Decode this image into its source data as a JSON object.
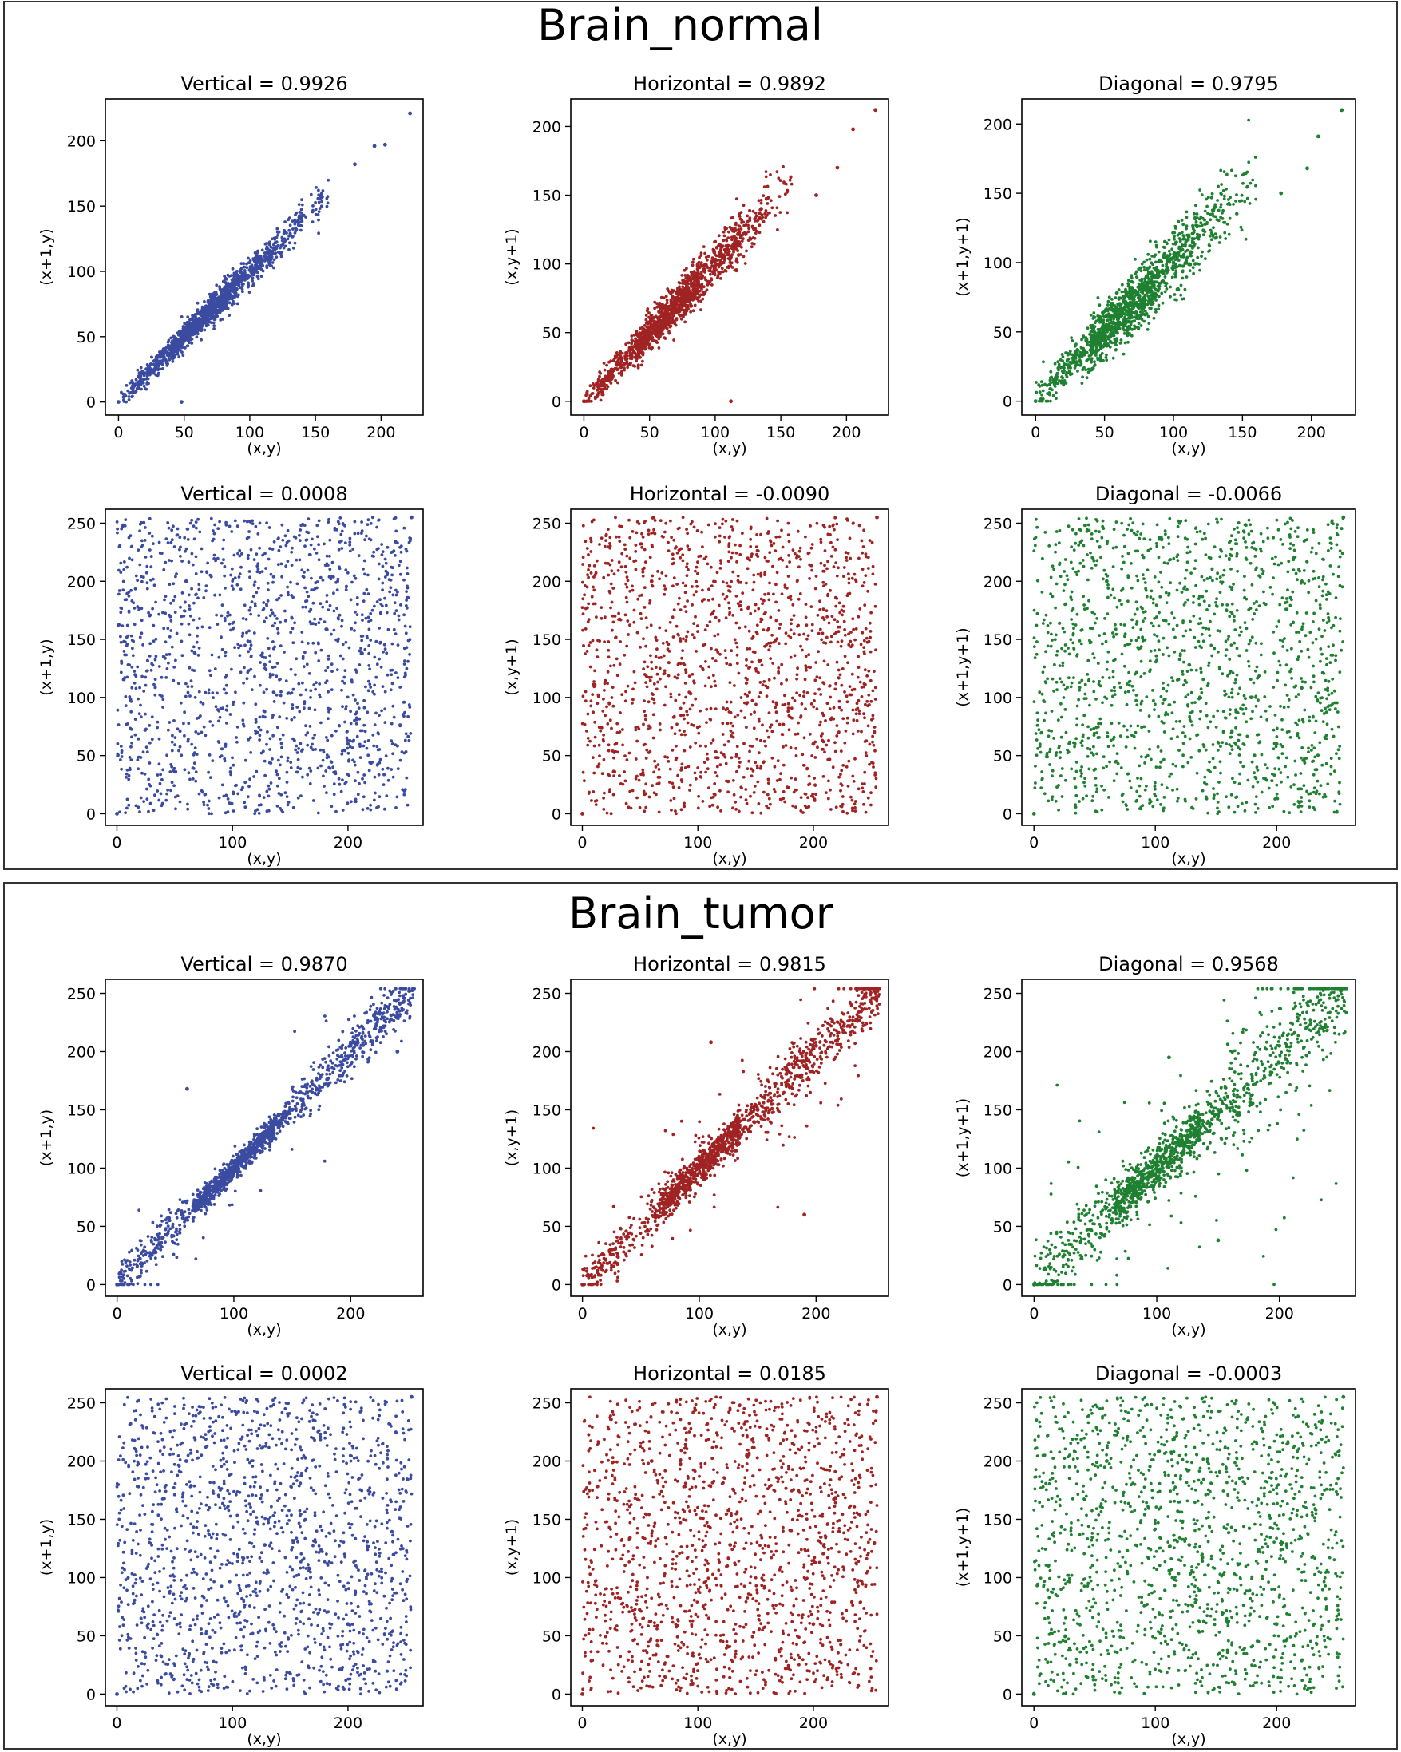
{
  "sections": [
    {
      "title": "Brain_normal",
      "chart_data": [
        {
          "type": "scatter",
          "title": "Vertical = 0.9926",
          "xlabel": "(x,y)",
          "ylabel": "(x+1,y)",
          "color": "#3a4ba0",
          "pattern": "corr",
          "xlim": [
            -10,
            232
          ],
          "ylim": [
            -10,
            232
          ],
          "xticks": [
            0,
            50,
            100,
            150,
            200
          ],
          "yticks": [
            0,
            50,
            100,
            150,
            200
          ],
          "points": [
            [
              0,
              0
            ],
            [
              40,
              42
            ],
            [
              60,
              62
            ],
            [
              80,
              82
            ],
            [
              100,
              101
            ],
            [
              155,
              157
            ],
            [
              180,
              182
            ],
            [
              195,
              196
            ],
            [
              203,
              197
            ],
            [
              222,
              221
            ],
            [
              48,
              0
            ]
          ]
        },
        {
          "type": "scatter",
          "title": "Horizontal = 0.9892",
          "xlabel": "(x,y)",
          "ylabel": "(x,y+1)",
          "color": "#a02323",
          "pattern": "corr",
          "xlim": [
            -10,
            232
          ],
          "ylim": [
            -10,
            220
          ],
          "xticks": [
            0,
            50,
            100,
            150,
            200
          ],
          "yticks": [
            0,
            50,
            100,
            150,
            200
          ],
          "points": [
            [
              0,
              0
            ],
            [
              40,
              41
            ],
            [
              60,
              63
            ],
            [
              80,
              79
            ],
            [
              100,
              98
            ],
            [
              135,
              140
            ],
            [
              177,
              150
            ],
            [
              193,
              170
            ],
            [
              205,
              198
            ],
            [
              222,
              212
            ],
            [
              112,
              0
            ]
          ]
        },
        {
          "type": "scatter",
          "title": "Diagonal = 0.9795",
          "xlabel": "(x,y)",
          "ylabel": "(x+1,y+1)",
          "color": "#1e8030",
          "pattern": "corr",
          "xlim": [
            -10,
            232
          ],
          "ylim": [
            -10,
            218
          ],
          "xticks": [
            0,
            50,
            100,
            150,
            200
          ],
          "yticks": [
            0,
            50,
            100,
            150,
            200
          ],
          "points": [
            [
              0,
              0
            ],
            [
              40,
              40
            ],
            [
              60,
              60
            ],
            [
              80,
              80
            ],
            [
              100,
              100
            ],
            [
              130,
              140
            ],
            [
              178,
              150
            ],
            [
              197,
              168
            ],
            [
              205,
              191
            ],
            [
              222,
              210
            ]
          ]
        },
        {
          "type": "scatter",
          "title": "Vertical = 0.0008",
          "xlabel": "(x,y)",
          "ylabel": "(x+1,y)",
          "color": "#3a4ba0",
          "pattern": "random",
          "xlim": [
            -10,
            265
          ],
          "ylim": [
            -10,
            262
          ],
          "xticks": [
            0,
            100,
            200
          ],
          "yticks": [
            0,
            50,
            100,
            150,
            200,
            250
          ],
          "points": [
            [
              0,
              0
            ],
            [
              128,
              128
            ],
            [
              255,
              255
            ],
            [
              60,
              200
            ],
            [
              200,
              60
            ]
          ]
        },
        {
          "type": "scatter",
          "title": "Horizontal = -0.0090",
          "xlabel": "(x,y)",
          "ylabel": "(x,y+1)",
          "color": "#a02323",
          "pattern": "random",
          "xlim": [
            -10,
            265
          ],
          "ylim": [
            -10,
            262
          ],
          "xticks": [
            0,
            100,
            200
          ],
          "yticks": [
            0,
            50,
            100,
            150,
            200,
            250
          ],
          "points": [
            [
              0,
              0
            ],
            [
              128,
              128
            ],
            [
              255,
              255
            ],
            [
              60,
              200
            ],
            [
              200,
              60
            ]
          ]
        },
        {
          "type": "scatter",
          "title": "Diagonal = -0.0066",
          "xlabel": "(x,y)",
          "ylabel": "(x+1,y+1)",
          "color": "#1e8030",
          "pattern": "random",
          "xlim": [
            -10,
            265
          ],
          "ylim": [
            -10,
            262
          ],
          "xticks": [
            0,
            100,
            200
          ],
          "yticks": [
            0,
            50,
            100,
            150,
            200,
            250
          ],
          "points": [
            [
              0,
              0
            ],
            [
              128,
              128
            ],
            [
              255,
              255
            ],
            [
              60,
              200
            ],
            [
              200,
              60
            ]
          ]
        }
      ]
    },
    {
      "title": "Brain_tumor",
      "chart_data": [
        {
          "type": "scatter",
          "title": "Vertical = 0.9870",
          "xlabel": "(x,y)",
          "ylabel": "(x+1,y)",
          "color": "#3a4ba0",
          "pattern": "corr",
          "xlim": [
            -10,
            262
          ],
          "ylim": [
            -10,
            262
          ],
          "xticks": [
            0,
            100,
            200
          ],
          "yticks": [
            0,
            50,
            100,
            150,
            200,
            250
          ],
          "points": [
            [
              0,
              0
            ],
            [
              70,
              70
            ],
            [
              100,
              100
            ],
            [
              125,
              128
            ],
            [
              150,
              150
            ],
            [
              200,
              205
            ],
            [
              250,
              252
            ],
            [
              60,
              168
            ],
            [
              240,
              200
            ]
          ]
        },
        {
          "type": "scatter",
          "title": "Horizontal = 0.9815",
          "xlabel": "(x,y)",
          "ylabel": "(x,y+1)",
          "color": "#a02323",
          "pattern": "corr",
          "xlim": [
            -10,
            262
          ],
          "ylim": [
            -10,
            262
          ],
          "xticks": [
            0,
            100,
            200
          ],
          "yticks": [
            0,
            50,
            100,
            150,
            200,
            250
          ],
          "points": [
            [
              0,
              0
            ],
            [
              70,
              70
            ],
            [
              100,
              100
            ],
            [
              125,
              128
            ],
            [
              150,
              150
            ],
            [
              200,
              205
            ],
            [
              250,
              252
            ],
            [
              110,
              208
            ],
            [
              190,
              60
            ]
          ]
        },
        {
          "type": "scatter",
          "title": "Diagonal = 0.9568",
          "xlabel": "(x,y)",
          "ylabel": "(x+1,y+1)",
          "color": "#1e8030",
          "pattern": "corr",
          "xlim": [
            -10,
            262
          ],
          "ylim": [
            -10,
            262
          ],
          "xticks": [
            0,
            100,
            200
          ],
          "yticks": [
            0,
            50,
            100,
            150,
            200,
            250
          ],
          "points": [
            [
              0,
              0
            ],
            [
              70,
              70
            ],
            [
              100,
              100
            ],
            [
              125,
              128
            ],
            [
              150,
              150
            ],
            [
              200,
              205
            ],
            [
              250,
              252
            ],
            [
              110,
              195
            ],
            [
              150,
              38
            ]
          ]
        },
        {
          "type": "scatter",
          "title": "Vertical = 0.0002",
          "xlabel": "(x,y)",
          "ylabel": "(x+1,y)",
          "color": "#3a4ba0",
          "pattern": "random",
          "xlim": [
            -10,
            265
          ],
          "ylim": [
            -10,
            262
          ],
          "xticks": [
            0,
            100,
            200
          ],
          "yticks": [
            0,
            50,
            100,
            150,
            200,
            250
          ],
          "points": [
            [
              0,
              0
            ],
            [
              128,
              128
            ],
            [
              255,
              255
            ],
            [
              60,
              200
            ],
            [
              200,
              60
            ]
          ]
        },
        {
          "type": "scatter",
          "title": "Horizontal = 0.0185",
          "xlabel": "(x,y)",
          "ylabel": "(x,y+1)",
          "color": "#a02323",
          "pattern": "random",
          "xlim": [
            -10,
            265
          ],
          "ylim": [
            -10,
            262
          ],
          "xticks": [
            0,
            100,
            200
          ],
          "yticks": [
            0,
            50,
            100,
            150,
            200,
            250
          ],
          "points": [
            [
              0,
              0
            ],
            [
              128,
              128
            ],
            [
              255,
              255
            ],
            [
              60,
              200
            ],
            [
              200,
              60
            ]
          ]
        },
        {
          "type": "scatter",
          "title": "Diagonal = -0.0003",
          "xlabel": "(x,y)",
          "ylabel": "(x+1,y+1)",
          "color": "#1e8030",
          "pattern": "random",
          "xlim": [
            -10,
            265
          ],
          "ylim": [
            -10,
            262
          ],
          "xticks": [
            0,
            100,
            200
          ],
          "yticks": [
            0,
            50,
            100,
            150,
            200,
            250
          ],
          "points": [
            [
              0,
              0
            ],
            [
              128,
              128
            ],
            [
              255,
              255
            ],
            [
              60,
              200
            ],
            [
              200,
              60
            ]
          ]
        }
      ]
    }
  ]
}
